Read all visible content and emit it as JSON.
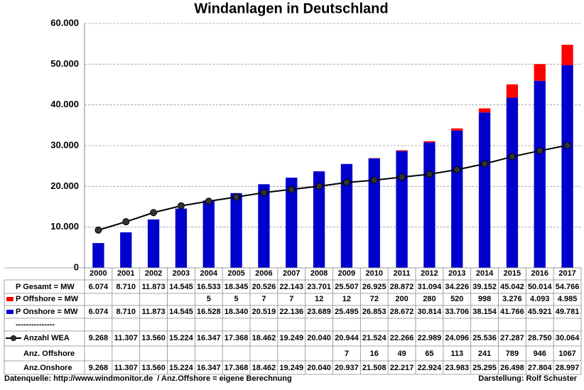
{
  "chart_data": {
    "type": "bar-line",
    "title": "Windanlagen in Deutschland",
    "categories": [
      "2000",
      "2001",
      "2002",
      "2003",
      "2004",
      "2005",
      "2006",
      "2007",
      "2008",
      "2009",
      "2010",
      "2011",
      "2012",
      "2013",
      "2014",
      "2015",
      "2016",
      "2017"
    ],
    "series": [
      {
        "name": "P Offshore = MW",
        "color": "#ff0000",
        "kind": "bar",
        "values": [
          null,
          null,
          null,
          null,
          5,
          5,
          7,
          7,
          12,
          12,
          72,
          200,
          280,
          520,
          998,
          3276,
          4093,
          4985
        ],
        "value_labels": [
          null,
          null,
          null,
          null,
          "5",
          "5",
          "7",
          "7",
          "12",
          "12",
          "72",
          "200",
          "280",
          "520",
          "998",
          "3.276",
          "4.093",
          "4.985"
        ]
      },
      {
        "name": "P Onshore = MW",
        "color": "#0000cc",
        "kind": "bar",
        "values": [
          6074,
          8710,
          11873,
          14545,
          16528,
          18340,
          20519,
          22136,
          23689,
          25495,
          26853,
          28672,
          30814,
          33706,
          38154,
          41766,
          45921,
          49781
        ],
        "value_labels": [
          "6.074",
          "8.710",
          "11.873",
          "14.545",
          "16.528",
          "18.340",
          "20.519",
          "22.136",
          "23.689",
          "25.495",
          "26.853",
          "28.672",
          "30.814",
          "33.706",
          "38.154",
          "41.766",
          "45.921",
          "49.781"
        ]
      },
      {
        "name": "Anzahl WEA",
        "color": "#000000",
        "kind": "line",
        "values": [
          9268,
          11307,
          13560,
          15224,
          16347,
          17368,
          18462,
          19249,
          20040,
          20944,
          21524,
          22266,
          22989,
          24096,
          25536,
          27287,
          28750,
          30064
        ],
        "value_labels": [
          "9.268",
          "11.307",
          "13.560",
          "15.224",
          "16.347",
          "17.368",
          "18.462",
          "19.249",
          "20.040",
          "20.944",
          "21.524",
          "22.266",
          "22.989",
          "24.096",
          "25.536",
          "27.287",
          "28.750",
          "30.064"
        ]
      }
    ],
    "table_rows": [
      {
        "name": "P Gesamt = MW",
        "cells": [
          "6.074",
          "8.710",
          "11.873",
          "14.545",
          "16.533",
          "18.345",
          "20.526",
          "22.143",
          "23.701",
          "25.507",
          "26.925",
          "28.872",
          "31.094",
          "34.226",
          "39.152",
          "45.042",
          "50.014",
          "54.766"
        ]
      },
      {
        "name": "---------------"
      },
      {
        "name": "Anz. Offshore",
        "cells": [
          null,
          null,
          null,
          null,
          null,
          null,
          null,
          null,
          null,
          "7",
          "16",
          "49",
          "65",
          "113",
          "241",
          "789",
          "946",
          "1067"
        ]
      },
      {
        "name": "Anz.Onshore",
        "cells": [
          "9.268",
          "11.307",
          "13.560",
          "15.224",
          "16.347",
          "17.368",
          "18.462",
          "19.249",
          "20.040",
          "20.937",
          "21.508",
          "22.217",
          "22.924",
          "23.983",
          "25.295",
          "26.498",
          "27.804",
          "28.997"
        ]
      }
    ],
    "ylim": [
      0,
      60000
    ],
    "yticks": [
      0,
      {
        "value": 10000,
        "label": "10.000"
      },
      {
        "value": 20000,
        "label": "20.000"
      },
      {
        "value": 30000,
        "label": "30.000"
      },
      {
        "value": 40000,
        "label": "40.000"
      },
      {
        "value": 50000,
        "label": "50.000"
      },
      {
        "value": 60000,
        "label": "60.000"
      }
    ],
    "grid": true,
    "source": "Datenquelle: http://www.windmonitor.de  / Anz.Offshore = eigene Berechnung",
    "credit": "Darstellung: Rolf Schuster"
  }
}
